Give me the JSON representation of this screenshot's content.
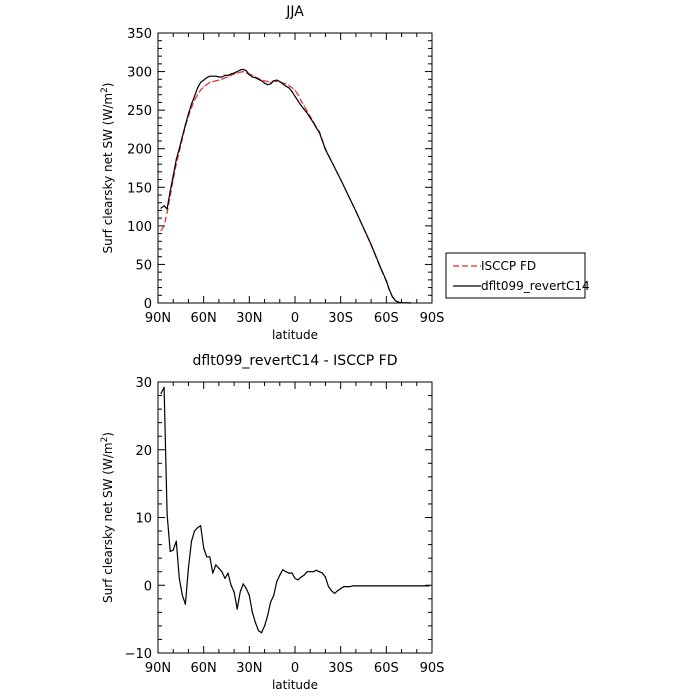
{
  "chart_data": [
    {
      "type": "line",
      "title": "JJA",
      "xlabel": "latitude",
      "ylabel_text": "Surf clearsky net SW (W/m",
      "ylabel_sup": "2",
      "ylabel_close": ")",
      "xlim": [
        90,
        -90
      ],
      "ylim": [
        0,
        350
      ],
      "x_ticks": [
        90,
        60,
        30,
        0,
        -30,
        -60,
        -90
      ],
      "x_tick_labels": [
        "90N",
        "60N",
        "30N",
        "0",
        "30S",
        "60S",
        "90S"
      ],
      "y_ticks": [
        0,
        50,
        100,
        150,
        200,
        250,
        300,
        350
      ],
      "y_tick_labels": [
        "0",
        "50",
        "100",
        "150",
        "200",
        "250",
        "300",
        "350"
      ],
      "legend_position": "right",
      "series": [
        {
          "name": "ISCCP FD",
          "color": "#e8262a",
          "dash": "dashed",
          "x": [
            88,
            86,
            84,
            82,
            80,
            78,
            76,
            74,
            72,
            70,
            68,
            66,
            64,
            62,
            60,
            58,
            56,
            54,
            52,
            50,
            48,
            46,
            44,
            42,
            40,
            38,
            36,
            34,
            32,
            30,
            28,
            26,
            24,
            22,
            20,
            18,
            16,
            14,
            12,
            10,
            8,
            6,
            4,
            2,
            0,
            -2,
            -4,
            -6,
            -8,
            -10,
            -12,
            -14,
            -16,
            -20,
            -30,
            -40,
            -50,
            -56,
            -60,
            -62,
            -64,
            -66,
            -68,
            -70,
            -72,
            -74,
            -76
          ],
          "values": [
            94,
            100,
            117,
            139,
            160,
            180,
            196,
            213,
            229,
            242,
            253,
            263,
            270,
            276,
            280,
            283,
            286,
            287,
            288,
            289,
            290,
            292,
            293,
            295,
            297,
            298,
            299,
            300,
            298,
            297,
            295,
            293,
            291,
            289,
            288,
            287,
            286,
            288,
            287,
            287,
            285,
            284,
            282,
            279,
            276,
            270,
            262,
            256,
            248,
            242,
            235,
            228,
            222,
            200,
            160,
            119,
            75,
            46,
            28,
            17,
            8,
            3,
            1,
            0.5,
            0.2,
            0.1,
            0
          ]
        },
        {
          "name": "dflt099_revertC14",
          "color": "#000000",
          "dash": "solid",
          "x": [
            88,
            86,
            84,
            82,
            80,
            78,
            76,
            74,
            72,
            70,
            68,
            66,
            64,
            62,
            60,
            58,
            56,
            54,
            52,
            50,
            48,
            46,
            44,
            42,
            40,
            38,
            36,
            34,
            32,
            30,
            28,
            26,
            24,
            22,
            20,
            18,
            16,
            14,
            12,
            10,
            8,
            6,
            4,
            2,
            0,
            -2,
            -4,
            -6,
            -8,
            -10,
            -12,
            -14,
            -16,
            -20,
            -30,
            -40,
            -50,
            -56,
            -60,
            -62,
            -64,
            -66,
            -68,
            -70,
            -72,
            -74,
            -76
          ],
          "values": [
            123,
            126,
            122,
            145,
            165,
            186,
            200,
            216,
            231,
            245,
            258,
            268,
            279,
            286,
            289,
            292,
            294,
            294,
            294,
            293,
            293,
            295,
            295,
            297,
            298,
            300,
            302,
            303,
            301,
            296,
            293,
            292,
            290,
            288,
            285,
            283,
            284,
            288,
            289,
            287,
            284,
            281,
            279,
            274,
            268,
            262,
            256,
            251,
            246,
            240,
            234,
            227,
            221,
            199,
            160,
            119,
            76,
            47,
            29,
            17,
            8,
            3,
            1,
            0.5,
            0.2,
            0.1,
            0
          ]
        }
      ]
    },
    {
      "type": "line",
      "title": "dflt099_revertC14 - ISCCP FD",
      "xlabel": "latitude",
      "ylabel_text": "Surf clearsky net SW (W/m",
      "ylabel_sup": "2",
      "ylabel_close": ")",
      "xlim": [
        90,
        -90
      ],
      "ylim": [
        -10,
        30
      ],
      "x_ticks": [
        90,
        60,
        30,
        0,
        -30,
        -60,
        -90
      ],
      "x_tick_labels": [
        "90N",
        "60N",
        "30N",
        "0",
        "30S",
        "60S",
        "90S"
      ],
      "y_ticks": [
        -10,
        0,
        10,
        20,
        30
      ],
      "y_tick_labels": [
        "−10",
        "0",
        "10",
        "20",
        "30"
      ],
      "series": [
        {
          "color": "#000000",
          "dash": "solid",
          "x": [
            88,
            86,
            84,
            82,
            80,
            78,
            76,
            74,
            72,
            70,
            68,
            66,
            64,
            62,
            60,
            58,
            56,
            54,
            52,
            50,
            48,
            46,
            44,
            42,
            40,
            38,
            36,
            34,
            32,
            30,
            28,
            26,
            24,
            22,
            20,
            18,
            16,
            14,
            12,
            10,
            8,
            6,
            4,
            2,
            0,
            -2,
            -4,
            -6,
            -8,
            -10,
            -12,
            -14,
            -16,
            -18,
            -20,
            -22,
            -24,
            -26,
            -28,
            -30,
            -32,
            -34,
            -36,
            -38,
            -40,
            -42,
            -44,
            -46,
            -48,
            -50,
            -52,
            -54,
            -56,
            -58,
            -60,
            -62,
            -64,
            -66,
            -68,
            -70,
            -72,
            -74,
            -76,
            -78,
            -80,
            -82,
            -84,
            -86,
            -88
          ],
          "values": [
            28.3,
            29.2,
            10.5,
            5.0,
            5.2,
            6.5,
            1.0,
            -1.5,
            -2.8,
            2.5,
            6.5,
            8.0,
            8.5,
            8.8,
            5.5,
            4.2,
            4.2,
            1.8,
            3.0,
            2.5,
            2.0,
            1.0,
            1.8,
            0.0,
            -1.0,
            -3.5,
            -1.0,
            0.2,
            -0.5,
            -1.5,
            -4.0,
            -5.5,
            -6.7,
            -7.0,
            -6.0,
            -4.5,
            -2.5,
            -1.5,
            0.5,
            1.5,
            2.3,
            2.0,
            1.8,
            1.8,
            1.0,
            0.8,
            1.2,
            1.5,
            2.0,
            2.0,
            2.0,
            2.2,
            2.0,
            1.8,
            1.2,
            -0.2,
            -0.8,
            -1.2,
            -0.8,
            -0.5,
            -0.2,
            -0.2,
            -0.2,
            -0.1,
            -0.1,
            -0.1,
            -0.1,
            -0.1,
            -0.1,
            -0.1,
            -0.1,
            -0.1,
            -0.1,
            -0.1,
            -0.1,
            -0.1,
            -0.1,
            -0.1,
            -0.1,
            -0.1,
            -0.1,
            -0.1,
            -0.1,
            -0.1,
            -0.1,
            -0.1,
            -0.1,
            -0.1,
            -0.1
          ]
        }
      ]
    }
  ]
}
